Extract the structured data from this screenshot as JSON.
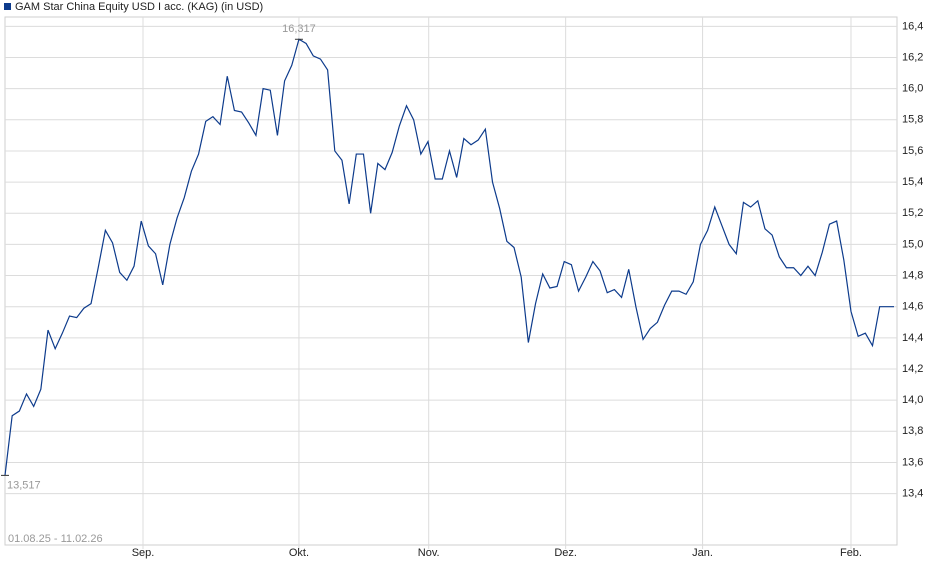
{
  "chart_data": {
    "type": "line",
    "title": "GAM Star China Equity USD I acc. (KAG) (in USD)",
    "date_range": "01.08.25 - 11.02.26",
    "max_label": "16,317",
    "min_label": "13,517",
    "x": [
      0,
      1,
      2,
      3,
      4,
      5,
      6,
      7,
      8,
      9,
      10,
      11,
      12,
      13,
      14,
      15,
      16,
      17,
      18,
      19,
      20,
      21,
      22,
      23,
      24,
      25,
      26,
      27,
      28,
      29,
      30,
      31,
      32,
      33,
      34,
      35,
      36,
      37,
      38,
      39,
      40,
      41,
      42,
      43,
      44,
      45,
      46,
      47,
      48,
      49,
      50,
      51,
      52,
      53,
      54,
      55,
      56,
      57,
      58,
      59,
      60,
      61,
      62,
      63,
      64,
      65,
      66,
      67,
      68,
      69,
      70,
      71,
      72,
      73,
      74,
      75,
      76,
      77,
      78,
      79,
      80,
      81,
      82,
      83,
      84,
      85,
      86,
      87,
      88,
      89,
      90,
      91,
      92,
      93,
      94,
      95,
      96,
      97,
      98,
      99,
      100,
      101,
      102,
      103,
      104,
      105,
      106,
      107,
      108,
      109,
      110,
      111,
      112,
      113,
      114,
      115,
      116,
      117,
      118,
      119,
      120,
      121,
      122,
      123,
      124
    ],
    "series": [
      {
        "name": "GAM Star China Equity USD I acc. (KAG) (in USD)",
        "color": "#0d3b8c",
        "values": [
          13.517,
          13.9,
          13.93,
          14.04,
          13.96,
          14.07,
          14.45,
          14.33,
          14.43,
          14.54,
          14.53,
          14.59,
          14.62,
          14.85,
          15.09,
          15.01,
          14.82,
          14.77,
          14.86,
          15.15,
          14.99,
          14.94,
          14.74,
          15.0,
          15.17,
          15.3,
          15.47,
          15.58,
          15.79,
          15.82,
          15.77,
          16.08,
          15.86,
          15.85,
          15.78,
          15.7,
          16.0,
          15.99,
          15.7,
          16.05,
          16.15,
          16.317,
          16.29,
          16.21,
          16.19,
          16.12,
          15.6,
          15.54,
          15.26,
          15.58,
          15.58,
          15.2,
          15.52,
          15.48,
          15.59,
          15.76,
          15.89,
          15.8,
          15.58,
          15.66,
          15.42,
          15.42,
          15.6,
          15.43,
          15.68,
          15.64,
          15.67,
          15.74,
          15.4,
          15.23,
          15.02,
          14.98,
          14.79,
          14.37,
          14.62,
          14.81,
          14.72,
          14.73,
          14.89,
          14.87,
          14.7,
          14.79,
          14.89,
          14.83,
          14.69,
          14.71,
          14.66,
          14.84,
          14.6,
          14.39,
          14.46,
          14.5,
          14.61,
          14.7,
          14.7,
          14.68,
          14.76,
          15.0,
          15.09,
          15.24,
          15.12,
          15.0,
          14.94,
          15.27,
          15.24,
          15.28,
          15.1,
          15.06,
          14.92,
          14.85,
          14.85,
          14.8,
          14.86,
          14.8,
          14.95,
          15.13,
          15.15,
          14.9,
          14.57,
          14.41,
          14.43,
          14.35,
          14.6,
          14.6,
          14.6
        ]
      }
    ],
    "xlim": [
      0,
      124
    ],
    "xticks": [
      {
        "value": 19.25,
        "label": "Sep."
      },
      {
        "value": 41,
        "label": "Okt."
      },
      {
        "value": 59.1,
        "label": "Nov."
      },
      {
        "value": 78.2,
        "label": "Dez."
      },
      {
        "value": 97.3,
        "label": "Jan."
      },
      {
        "value": 118,
        "label": "Feb."
      }
    ],
    "ylim": [
      13.07,
      16.46
    ],
    "yticks": [
      {
        "value": 13.4,
        "label": "13,4"
      },
      {
        "value": 13.6,
        "label": "13,6"
      },
      {
        "value": 13.8,
        "label": "13,8"
      },
      {
        "value": 14.0,
        "label": "14,0"
      },
      {
        "value": 14.2,
        "label": "14,2"
      },
      {
        "value": 14.4,
        "label": "14,4"
      },
      {
        "value": 14.6,
        "label": "14,6"
      },
      {
        "value": 14.8,
        "label": "14,8"
      },
      {
        "value": 15.0,
        "label": "15,0"
      },
      {
        "value": 15.2,
        "label": "15,2"
      },
      {
        "value": 15.4,
        "label": "15,4"
      },
      {
        "value": 15.6,
        "label": "15,6"
      },
      {
        "value": 15.8,
        "label": "15,8"
      },
      {
        "value": 16.0,
        "label": "16,0"
      },
      {
        "value": 16.2,
        "label": "16,2"
      },
      {
        "value": 16.4,
        "label": "16,4"
      }
    ],
    "grid": true
  }
}
